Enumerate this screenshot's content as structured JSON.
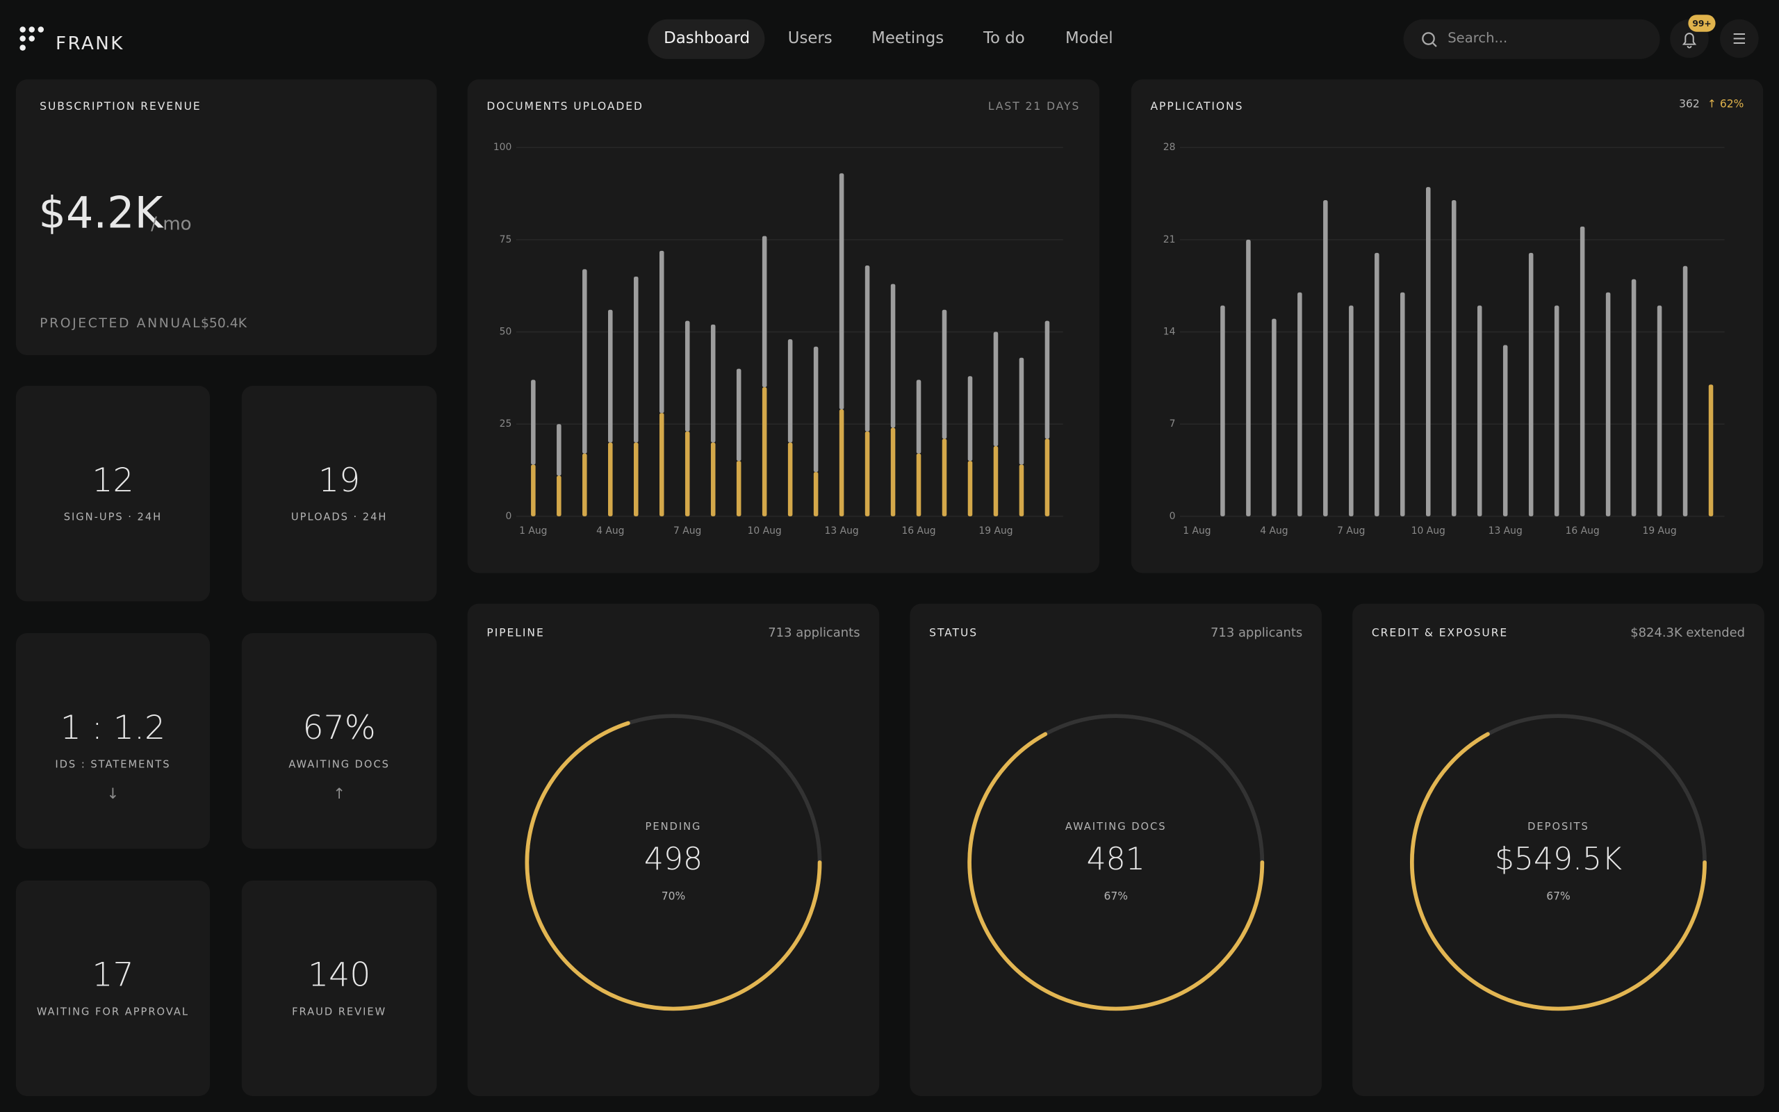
{
  "header": {
    "logo": "FRANK",
    "nav": [
      "Dashboard",
      "Users",
      "Meetings",
      "To do",
      "Model"
    ],
    "search_placeholder": "Search...",
    "notification_badge": "99+"
  },
  "revenue": {
    "title": "SUBSCRIPTION REVENUE",
    "value": "$4.2K",
    "unit": "/ mo",
    "projected_label": "PROJECTED ANNUAL",
    "projected_value": "$50.4K"
  },
  "stats": [
    {
      "value": "12",
      "label": "SIGN-UPS · 24H"
    },
    {
      "value": "19",
      "label": "UPLOADS · 24H"
    },
    {
      "value": "1 : 1.2",
      "label": "IDS : STATEMENTS",
      "trend": "↓"
    },
    {
      "value": "67%",
      "label": "AWAITING DOCS",
      "trend": "↑"
    },
    {
      "value": "17",
      "label": "WAITING FOR APPROVAL"
    },
    {
      "value": "140",
      "label": "FRAUD REVIEW"
    }
  ],
  "chart_data": [
    {
      "type": "bar",
      "stacked": true,
      "title": "DOCUMENTS UPLOADED",
      "subtitle": "LAST 21 DAYS",
      "categories": [
        "1 Aug",
        null,
        null,
        "4 Aug",
        null,
        null,
        "7 Aug",
        null,
        null,
        "10 Aug",
        null,
        null,
        "13 Aug",
        null,
        null,
        "16 Aug",
        null,
        null,
        "19 Aug",
        null,
        null
      ],
      "series": [
        {
          "color": "#d4a84a",
          "values": [
            14,
            11,
            17,
            20,
            20,
            28,
            23,
            20,
            15,
            35,
            20,
            12,
            29,
            23,
            24,
            17,
            21,
            15,
            19,
            14,
            21
          ]
        },
        {
          "color": "#9d9d9d",
          "values": [
            23,
            14,
            50,
            36,
            45,
            44,
            30,
            32,
            25,
            41,
            28,
            34,
            64,
            45,
            39,
            20,
            35,
            23,
            31,
            29,
            32
          ]
        }
      ],
      "ylim": [
        0,
        100
      ],
      "yticks": [
        0,
        25,
        50,
        75,
        100
      ],
      "grid": true
    },
    {
      "type": "bar",
      "title": "APPLICATIONS",
      "total": 362,
      "change_label": "↑ 62%",
      "categories": [
        "1 Aug",
        null,
        null,
        "4 Aug",
        null,
        null,
        "7 Aug",
        null,
        null,
        "10 Aug",
        null,
        null,
        "13 Aug",
        null,
        null,
        "16 Aug",
        null,
        null,
        "19 Aug",
        null,
        null
      ],
      "values": [
        0,
        16,
        21,
        15,
        17,
        24,
        16,
        20,
        17,
        25,
        24,
        16,
        13,
        20,
        16,
        22,
        17,
        18,
        16,
        19,
        10
      ],
      "colors": [
        "#9d9d9d",
        "#9d9d9d",
        "#9d9d9d",
        "#9d9d9d",
        "#9d9d9d",
        "#9d9d9d",
        "#9d9d9d",
        "#9d9d9d",
        "#9d9d9d",
        "#9d9d9d",
        "#9d9d9d",
        "#9d9d9d",
        "#9d9d9d",
        "#9d9d9d",
        "#9d9d9d",
        "#9d9d9d",
        "#9d9d9d",
        "#9d9d9d",
        "#9d9d9d",
        "#9d9d9d",
        "#d4a84a"
      ],
      "ylim": [
        0,
        28
      ],
      "yticks": [
        0,
        7,
        14,
        21,
        28
      ],
      "grid": true
    },
    {
      "type": "donut",
      "title": "PIPELINE",
      "subtitle": "713 applicants",
      "label": "PENDING",
      "value": 498,
      "percent": 70,
      "percent_label": "70%",
      "color": "#e3b652",
      "track_color": "#333333"
    },
    {
      "type": "donut",
      "title": "STATUS",
      "subtitle": "713 applicants",
      "label": "AWAITING DOCS",
      "value": 481,
      "percent": 67,
      "percent_label": "67%",
      "color": "#e3b652",
      "track_color": "#333333"
    },
    {
      "type": "donut",
      "title": "CREDIT & EXPOSURE",
      "subtitle": "$824.3K extended",
      "label": "DEPOSITS",
      "value": 549500,
      "value_label": "$549.5K",
      "percent": 67,
      "percent_label": "67%",
      "color": "#e3b652",
      "track_color": "#333333"
    }
  ]
}
